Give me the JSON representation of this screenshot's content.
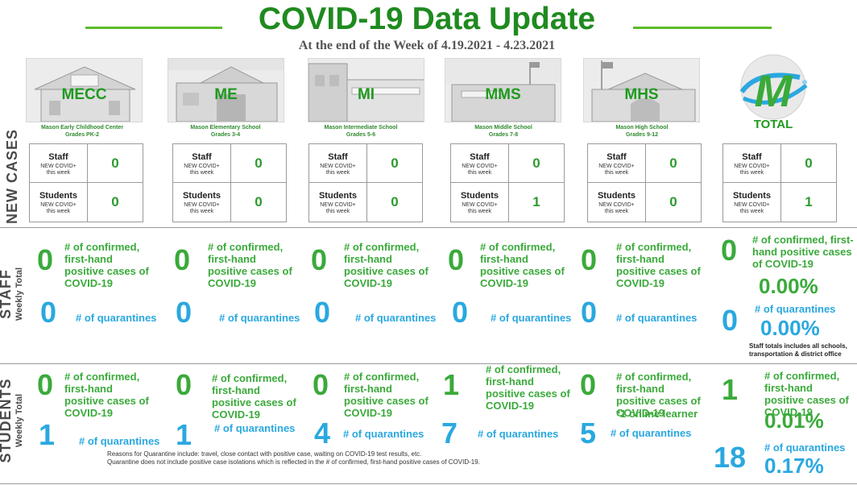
{
  "header": {
    "title": "COVID-19 Data Update",
    "subtitle": "At the end of the Week of 4.19.2021 - 4.23.2021"
  },
  "colors": {
    "green": "#3aaa3a",
    "blue": "#2aa8e0",
    "dark_green": "#1f8a1f"
  },
  "sections": {
    "new_cases": "NEW CASES",
    "staff": "STAFF",
    "staff_sub": "Weekly Total",
    "students": "STUDENTS",
    "students_sub": "Weekly Total"
  },
  "labels": {
    "staff": "Staff",
    "students": "Students",
    "new_covid_1": "NEW COVID+",
    "new_covid_2": "this week",
    "confirmed": "# of confirmed, first-hand positive cases of COVID-19",
    "quarantines": "# of quarantines"
  },
  "schools": [
    {
      "code": "MECC",
      "name": "Mason Early Childhood Center",
      "grades": "Grades PK-2",
      "new_staff": "0",
      "new_students": "0",
      "staff_confirmed": "0",
      "staff_quarantines": "0",
      "student_confirmed": "0",
      "student_quarantines": "1",
      "student_note": ""
    },
    {
      "code": "ME",
      "name": "Mason Elementary School",
      "grades": "Grades 3-4",
      "new_staff": "0",
      "new_students": "0",
      "staff_confirmed": "0",
      "staff_quarantines": "0",
      "student_confirmed": "0",
      "student_quarantines": "1",
      "student_note": ""
    },
    {
      "code": "MI",
      "name": "Mason Intermediate  School",
      "grades": "Grades 5-6",
      "new_staff": "0",
      "new_students": "0",
      "staff_confirmed": "0",
      "staff_quarantines": "0",
      "student_confirmed": "0",
      "student_quarantines": "4",
      "student_note": ""
    },
    {
      "code": "MMS",
      "name": "Mason Middle School",
      "grades": "Grades 7-8",
      "new_staff": "0",
      "new_students": "1",
      "staff_confirmed": "0",
      "staff_quarantines": "0",
      "student_confirmed": "1",
      "student_quarantines": "7",
      "student_note": ""
    },
    {
      "code": "MHS",
      "name": "Mason High School",
      "grades": "Grades 9-12",
      "new_staff": "0",
      "new_students": "0",
      "staff_confirmed": "0",
      "staff_quarantines": "0",
      "student_confirmed": "0",
      "student_quarantines": "5",
      "student_note": "*1 online learner"
    }
  ],
  "total": {
    "label": "TOTAL",
    "logo_letter": "M",
    "new_staff": "0",
    "new_students": "1",
    "staff_confirmed": "0",
    "staff_confirmed_pct": "0.00%",
    "staff_quarantines": "0",
    "staff_quarantines_pct": "0.00%",
    "staff_note_1": "Staff totals includes all schools,",
    "staff_note_2": "transportation & district office",
    "student_confirmed": "1",
    "student_confirmed_pct": "0.01%",
    "student_quarantines": "18",
    "student_quarantines_pct": "0.17%"
  },
  "footer": {
    "line1": "Reasons for Quarantine include: travel, close contact with positive case, waiting on COVID-19 test results, etc.",
    "line2": "Quarantine does not include positive case isolations which is reflected in the # of confirmed, first-hand positive cases of COVID-19."
  }
}
